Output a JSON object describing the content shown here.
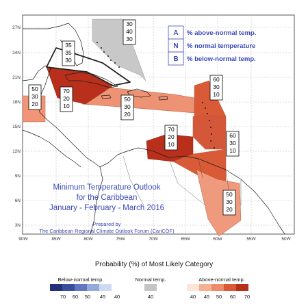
{
  "map": {
    "title_lines": [
      "Minimum Temperature Outlook",
      "for the Caribbean",
      "January - February - March 2016"
    ],
    "credit_lines": [
      "Prepared by",
      "The Caribbean Regional Climate Outlook Forum (CariCOF)"
    ],
    "lat_labels": [
      "27N",
      "24N",
      "21N",
      "18N",
      "15N",
      "12N",
      "9N",
      "6N",
      "3N"
    ],
    "lon_labels": [
      "90W",
      "85W",
      "80W",
      "75W",
      "70W",
      "65W",
      "60W",
      "55W",
      "50W"
    ],
    "key": [
      {
        "letter": "A",
        "text": "% above-normal temp."
      },
      {
        "letter": "N",
        "text": "% normal temperature"
      },
      {
        "letter": "B",
        "text": "% below-normal temp."
      }
    ],
    "zone_boxes": [
      {
        "id": "bahamas-north",
        "values": [
          "30",
          "40",
          "30"
        ]
      },
      {
        "id": "northwest",
        "values": [
          "35",
          "35",
          "30"
        ]
      },
      {
        "id": "belize",
        "values": [
          "50",
          "30",
          "20"
        ]
      },
      {
        "id": "cuba-central",
        "values": [
          "70",
          "20",
          "10"
        ]
      },
      {
        "id": "greater-antilles",
        "values": [
          "50",
          "30",
          "20"
        ]
      },
      {
        "id": "leeward-islands",
        "values": [
          "60",
          "30",
          "10"
        ]
      },
      {
        "id": "caribbean-sea",
        "values": [
          "70",
          "20",
          "10"
        ]
      },
      {
        "id": "windward-islands",
        "values": [
          "60",
          "30",
          "10"
        ]
      },
      {
        "id": "guianas",
        "values": [
          "50",
          "30",
          "20"
        ]
      }
    ],
    "colors": {
      "ocean": "#ffffff",
      "land_stroke": "#1a1a1a",
      "grid": "#b8b8b8",
      "title_blue": "#3a48b8",
      "normal_gray": "#c8c8c8",
      "above_40": "#fde6d8",
      "above_45": "#f5b092",
      "above_50": "#ec8c6a",
      "above_60": "#d85a36",
      "above_70": "#b8301c"
    }
  },
  "legend": {
    "title": "Probability (%) of Most Likely Category",
    "groups": [
      {
        "label": "Below-normal temp.",
        "steps": [
          "70",
          "60",
          "50",
          "45",
          "40"
        ],
        "colors": [
          "#24307a",
          "#3a4f9c",
          "#5f78bf",
          "#94aadc",
          "#cfdaf2"
        ]
      },
      {
        "label": "Normal temp.",
        "steps": [
          "40"
        ],
        "colors": [
          "#c4c4c4"
        ]
      },
      {
        "label": "Above-normal temp.",
        "steps": [
          "40",
          "45",
          "50",
          "60",
          "70"
        ],
        "colors": [
          "#fde6d8",
          "#f5b092",
          "#ec8c6a",
          "#d85a36",
          "#b8301c"
        ]
      }
    ]
  }
}
